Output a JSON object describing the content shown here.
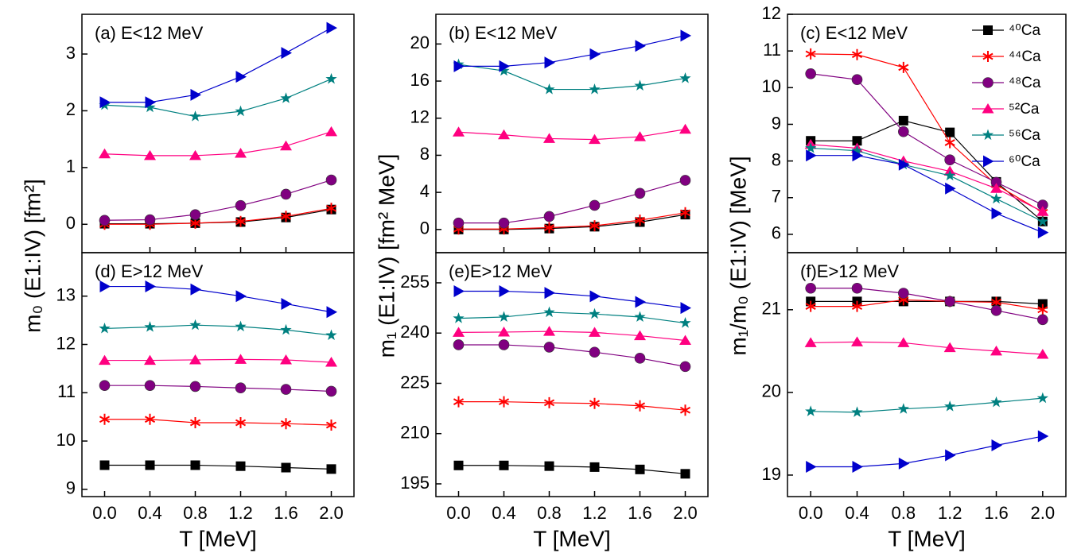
{
  "chart_data": [
    {
      "type": "line",
      "title": "(a) E<12 MeV",
      "y_label": "m₀ (E1:IV) [fm²]",
      "x": [
        0,
        0.4,
        0.8,
        1.2,
        1.6,
        2.0
      ],
      "xlim": [
        -0.2,
        2.2
      ],
      "xticks": [
        0.4,
        0.8,
        1.2,
        1.6
      ],
      "ylim": [
        -0.5,
        3.7
      ],
      "yticks": [
        0,
        1,
        2,
        3
      ],
      "series": [
        {
          "color": "#000000",
          "marker": "square",
          "values": [
            0.01,
            0.01,
            0.02,
            0.04,
            0.12,
            0.26
          ]
        },
        {
          "color": "#ff0000",
          "marker": "asterisk",
          "values": [
            0.0,
            0.0,
            0.02,
            0.05,
            0.14,
            0.28
          ]
        },
        {
          "color": "#800080",
          "marker": "circle",
          "values": [
            0.07,
            0.08,
            0.17,
            0.33,
            0.53,
            0.78
          ]
        },
        {
          "color": "#ff0080",
          "marker": "triangle",
          "values": [
            1.24,
            1.21,
            1.21,
            1.25,
            1.38,
            1.63
          ]
        },
        {
          "color": "#008080",
          "marker": "star",
          "values": [
            2.1,
            2.06,
            1.9,
            1.99,
            2.22,
            2.56
          ]
        },
        {
          "color": "#0000cc",
          "marker": "triangle-right",
          "values": [
            2.15,
            2.15,
            2.28,
            2.6,
            3.02,
            3.46
          ]
        }
      ]
    },
    {
      "type": "line",
      "title": "(b) E<12 MeV",
      "y_label": "m₁ (E1:IV) [fm² MeV]",
      "x": [
        0,
        0.4,
        0.8,
        1.2,
        1.6,
        2.0
      ],
      "xlim": [
        -0.2,
        2.2
      ],
      "xticks": [
        0.4,
        0.8,
        1.2,
        1.6
      ],
      "ylim": [
        -2.5,
        23.2
      ],
      "yticks": [
        0,
        4,
        8,
        12,
        16,
        20
      ],
      "series": [
        {
          "color": "#000000",
          "marker": "square",
          "values": [
            0.0,
            0.0,
            0.1,
            0.3,
            0.8,
            1.6
          ]
        },
        {
          "color": "#ff0000",
          "marker": "asterisk",
          "values": [
            0.05,
            0.05,
            0.2,
            0.4,
            1.0,
            1.8
          ]
        },
        {
          "color": "#800080",
          "marker": "circle",
          "values": [
            0.7,
            0.7,
            1.4,
            2.6,
            3.9,
            5.3
          ]
        },
        {
          "color": "#ff0080",
          "marker": "triangle",
          "values": [
            10.5,
            10.2,
            9.8,
            9.7,
            10.0,
            10.8
          ]
        },
        {
          "color": "#008080",
          "marker": "star",
          "values": [
            17.8,
            17.1,
            15.1,
            15.1,
            15.5,
            16.3
          ]
        },
        {
          "color": "#0000cc",
          "marker": "triangle-right",
          "values": [
            17.6,
            17.6,
            18.0,
            18.9,
            19.8,
            20.9
          ]
        }
      ]
    },
    {
      "type": "line",
      "title": "(c) E<12 MeV",
      "y_label": "m₁/m₀ (E1:IV) [MeV]",
      "legend": "upper right",
      "x": [
        0,
        0.4,
        0.8,
        1.2,
        1.6,
        2.0
      ],
      "xlim": [
        -0.2,
        2.2
      ],
      "xticks": [
        0.4,
        0.8,
        1.2,
        1.6
      ],
      "ylim": [
        5.5,
        12
      ],
      "yticks": [
        6,
        7,
        8,
        9,
        10,
        11,
        12
      ],
      "series": [
        {
          "name": "⁴⁰Ca",
          "color": "#000000",
          "marker": "square",
          "values": [
            8.55,
            8.55,
            9.1,
            8.78,
            7.43,
            6.35
          ]
        },
        {
          "name": "⁴⁴Ca",
          "color": "#ff0000",
          "marker": "asterisk",
          "values": [
            10.92,
            10.9,
            10.55,
            8.5,
            7.35,
            6.6
          ]
        },
        {
          "name": "⁴⁸Ca",
          "color": "#800080",
          "marker": "circle",
          "values": [
            10.38,
            10.22,
            8.8,
            8.03,
            7.42,
            6.8
          ]
        },
        {
          "name": "⁵²Ca",
          "color": "#ff0080",
          "marker": "triangle",
          "values": [
            8.45,
            8.35,
            8.0,
            7.72,
            7.25,
            6.62
          ]
        },
        {
          "name": "⁵⁶Ca",
          "color": "#008080",
          "marker": "star",
          "values": [
            8.35,
            8.28,
            7.9,
            7.6,
            6.97,
            6.35
          ]
        },
        {
          "name": "⁶⁰Ca",
          "color": "#0000cc",
          "marker": "triangle-right",
          "values": [
            8.15,
            8.15,
            7.9,
            7.25,
            6.57,
            6.05
          ]
        }
      ]
    },
    {
      "type": "line",
      "title": "(d) E>12 MeV",
      "x_label": "T [MeV]",
      "x": [
        0,
        0.4,
        0.8,
        1.2,
        1.6,
        2.0
      ],
      "xlim": [
        -0.2,
        2.2
      ],
      "xticks": [
        {
          "value": 0,
          "label": "0.0"
        },
        0.4,
        0.8,
        1.2,
        1.6,
        {
          "value": 2,
          "label": "2.0"
        }
      ],
      "ylim": [
        8.85,
        13.9
      ],
      "yticks": [
        9,
        10,
        11,
        12,
        13
      ],
      "series": [
        {
          "color": "#000000",
          "marker": "square",
          "values": [
            9.5,
            9.5,
            9.5,
            9.48,
            9.45,
            9.42
          ]
        },
        {
          "color": "#ff0000",
          "marker": "asterisk",
          "values": [
            10.45,
            10.45,
            10.38,
            10.38,
            10.36,
            10.33
          ]
        },
        {
          "color": "#800080",
          "marker": "circle",
          "values": [
            11.15,
            11.15,
            11.13,
            11.1,
            11.07,
            11.03
          ]
        },
        {
          "color": "#ff0080",
          "marker": "triangle",
          "values": [
            11.67,
            11.67,
            11.68,
            11.69,
            11.68,
            11.63
          ]
        },
        {
          "color": "#008080",
          "marker": "star",
          "values": [
            12.33,
            12.36,
            12.4,
            12.37,
            12.3,
            12.19
          ]
        },
        {
          "color": "#0000cc",
          "marker": "triangle-right",
          "values": [
            13.2,
            13.2,
            13.14,
            13.0,
            12.84,
            12.67
          ]
        }
      ]
    },
    {
      "type": "line",
      "title": "(e)E>12 MeV",
      "x_label": "T [MeV]",
      "x": [
        0,
        0.4,
        0.8,
        1.2,
        1.6,
        2.0
      ],
      "xlim": [
        -0.2,
        2.2
      ],
      "xticks": [
        {
          "value": 0,
          "label": "0.0"
        },
        0.4,
        0.8,
        1.2,
        1.6,
        {
          "value": 2,
          "label": "2.0"
        }
      ],
      "ylim": [
        191.2,
        264
      ],
      "yticks": [
        195,
        210,
        225,
        240,
        255
      ],
      "series": [
        {
          "color": "#000000",
          "marker": "square",
          "values": [
            200.5,
            200.5,
            200.3,
            200,
            199.3,
            198
          ]
        },
        {
          "color": "#ff0000",
          "marker": "asterisk",
          "values": [
            219.5,
            219.5,
            219.2,
            219,
            218.3,
            217
          ]
        },
        {
          "color": "#800080",
          "marker": "circle",
          "values": [
            236.5,
            236.5,
            235.8,
            234.3,
            232.5,
            230
          ]
        },
        {
          "color": "#ff0080",
          "marker": "triangle",
          "values": [
            240.2,
            240.3,
            240.5,
            240.2,
            239.2,
            237.8
          ]
        },
        {
          "color": "#008080",
          "marker": "star",
          "values": [
            244.4,
            244.8,
            246.2,
            245.7,
            244.8,
            243
          ]
        },
        {
          "color": "#0000cc",
          "marker": "triangle-right",
          "values": [
            252.5,
            252.5,
            252.0,
            251,
            249.3,
            247.5
          ]
        }
      ]
    },
    {
      "type": "line",
      "title": "(f)E>12 MeV",
      "x_label": "T [MeV]",
      "x": [
        0,
        0.4,
        0.8,
        1.2,
        1.6,
        2.0
      ],
      "xlim": [
        -0.2,
        2.2
      ],
      "xticks": [
        {
          "value": 0,
          "label": "0.0"
        },
        0.4,
        0.8,
        1.2,
        1.6,
        {
          "value": 2,
          "label": "2.0"
        }
      ],
      "ylim": [
        18.74,
        21.69
      ],
      "yticks": [
        19,
        20,
        21
      ],
      "series": [
        {
          "color": "#000000",
          "marker": "square",
          "values": [
            21.1,
            21.1,
            21.1,
            21.1,
            21.1,
            21.07
          ]
        },
        {
          "color": "#ff0000",
          "marker": "asterisk",
          "values": [
            21.04,
            21.04,
            21.12,
            21.1,
            21.09,
            21.0
          ]
        },
        {
          "color": "#800080",
          "marker": "circle",
          "values": [
            21.26,
            21.26,
            21.2,
            21.1,
            20.99,
            20.88
          ]
        },
        {
          "color": "#ff0080",
          "marker": "triangle",
          "values": [
            20.6,
            20.61,
            20.6,
            20.54,
            20.5,
            20.46
          ]
        },
        {
          "color": "#008080",
          "marker": "star",
          "values": [
            19.77,
            19.76,
            19.8,
            19.83,
            19.88,
            19.93
          ]
        },
        {
          "color": "#0000cc",
          "marker": "triangle-right",
          "values": [
            19.1,
            19.1,
            19.14,
            19.24,
            19.36,
            19.47
          ]
        }
      ]
    }
  ]
}
